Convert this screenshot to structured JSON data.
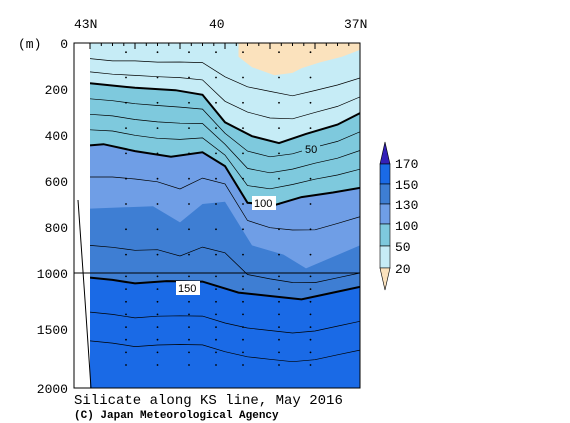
{
  "chart_data": {
    "type": "contour",
    "title": "Silicate along KS line, May 2016",
    "credit": "(C) Japan Meteorological Agency",
    "y_unit": "(m)",
    "x_ticks": [
      "43N",
      "40",
      "37N"
    ],
    "y_ticks": [
      "0",
      "200",
      "400",
      "600",
      "800",
      "1000",
      "1500",
      "2000"
    ],
    "y_scale": "0-1000 m linear (upper part), 1000-2000 m compressed (lower part)",
    "legend_ticks": [
      "170",
      "150",
      "130",
      "100",
      "50",
      "20"
    ],
    "colors": {
      "lt20": "#fbe2bd",
      "c20_50": "#c6ecf6",
      "c50_100": "#7ec9dd",
      "c100_130": "#6f9ee6",
      "c130_150": "#3e7ed3",
      "c150_170": "#1a6ae6",
      "gt170": "#3320b8",
      "seabed": "#ffffff"
    },
    "contour_labels": [
      {
        "text": "50",
        "lat": 38.5,
        "depth": 455
      },
      {
        "text": "100",
        "lat": 39.3,
        "depth": 705
      },
      {
        "text": "150",
        "lat": 40.3,
        "depth": 1150
      }
    ],
    "major_contours": [
      {
        "value": 50,
        "points": [
          [
            43,
            175
          ],
          [
            42,
            195
          ],
          [
            41.1,
            205
          ],
          [
            40.5,
            225
          ],
          [
            40,
            345
          ],
          [
            39.4,
            405
          ],
          [
            38.8,
            435
          ],
          [
            38.2,
            395
          ],
          [
            37.5,
            355
          ],
          [
            37,
            305
          ]
        ]
      },
      {
        "value": 100,
        "points": [
          [
            43,
            445
          ],
          [
            42.7,
            440
          ],
          [
            42,
            470
          ],
          [
            41.2,
            495
          ],
          [
            40.5,
            475
          ],
          [
            40,
            535
          ],
          [
            39.5,
            695
          ],
          [
            38.9,
            705
          ],
          [
            38.3,
            670
          ],
          [
            37.6,
            650
          ],
          [
            37,
            630
          ]
        ]
      },
      {
        "value": 150,
        "points": [
          [
            43,
            1040
          ],
          [
            42.5,
            1060
          ],
          [
            42,
            1090
          ],
          [
            41.3,
            1070
          ],
          [
            40.5,
            1075
          ],
          [
            39.7,
            1170
          ],
          [
            39.0,
            1200
          ],
          [
            38.3,
            1230
          ],
          [
            37.6,
            1170
          ],
          [
            37,
            1120
          ]
        ]
      }
    ]
  }
}
